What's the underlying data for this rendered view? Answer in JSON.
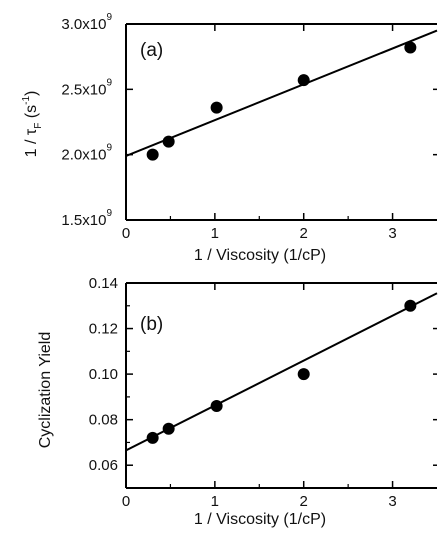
{
  "chart_data": [
    {
      "type": "scatter",
      "panel_label": "(a)",
      "title": "",
      "xlabel": "1 / Viscosity (1/cP)",
      "ylabel_parts": {
        "main": "1 / τ",
        "sub": "F",
        "unit_open": " (s",
        "unit_sup": "-1",
        "unit_close": ")"
      },
      "xlim": [
        0,
        3.5
      ],
      "ylim": [
        1500000000.0,
        3000000000.0
      ],
      "x_ticks": [
        0,
        1,
        2,
        3
      ],
      "x_tick_labels": [
        "0",
        "1",
        "2",
        "3"
      ],
      "y_ticks": [
        1500000000.0,
        2000000000.0,
        2500000000.0,
        3000000000.0
      ],
      "y_tick_labels": [
        {
          "mantissa": "1.5x10",
          "exp": "9"
        },
        {
          "mantissa": "2.0x10",
          "exp": "9"
        },
        {
          "mantissa": "2.5x10",
          "exp": "9"
        },
        {
          "mantissa": "3.0x10",
          "exp": "9"
        }
      ],
      "points": [
        {
          "x": 0.3,
          "y": 2000000000.0
        },
        {
          "x": 0.48,
          "y": 2100000000.0
        },
        {
          "x": 1.02,
          "y": 2360000000.0
        },
        {
          "x": 2.0,
          "y": 2570000000.0
        },
        {
          "x": 3.2,
          "y": 2820000000.0
        }
      ],
      "fit_line": {
        "x": [
          0,
          3.5
        ],
        "y": [
          1990000000.0,
          2950000000.0
        ]
      },
      "grid": false
    },
    {
      "type": "scatter",
      "panel_label": "(b)",
      "title": "",
      "xlabel": "1 / Viscosity (1/cP)",
      "ylabel": "Cyclization Yield",
      "xlim": [
        0,
        3.5
      ],
      "ylim": [
        0.05,
        0.14
      ],
      "x_ticks": [
        0,
        1,
        2,
        3
      ],
      "x_tick_labels": [
        "0",
        "1",
        "2",
        "3"
      ],
      "y_ticks": [
        0.06,
        0.08,
        0.1,
        0.12,
        0.14
      ],
      "y_tick_labels": [
        "0.06",
        "0.08",
        "0.10",
        "0.12",
        "0.14"
      ],
      "points": [
        {
          "x": 0.3,
          "y": 0.072
        },
        {
          "x": 0.48,
          "y": 0.076
        },
        {
          "x": 1.02,
          "y": 0.086
        },
        {
          "x": 2.0,
          "y": 0.1
        },
        {
          "x": 3.2,
          "y": 0.13
        }
      ],
      "fit_line": {
        "x": [
          0,
          3.5
        ],
        "y": [
          0.0665,
          0.1355
        ]
      },
      "grid": false
    }
  ]
}
